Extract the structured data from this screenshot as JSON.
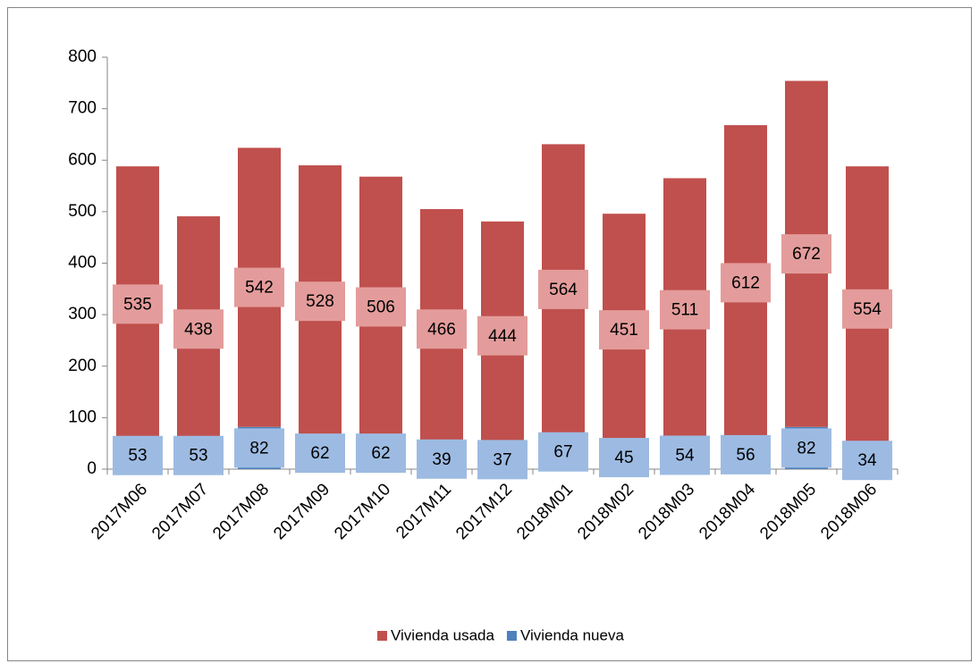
{
  "chart_data": {
    "type": "stacked_bar",
    "categories": [
      "2017M06",
      "2017M07",
      "2017M08",
      "2017M09",
      "2017M10",
      "2017M11",
      "2017M12",
      "2018M01",
      "2018M02",
      "2018M03",
      "2018M04",
      "2018M05",
      "2018M06"
    ],
    "series": [
      {
        "name": "Vivienda nueva",
        "color": "#4f81bd",
        "label_color": "#9dbbe2",
        "values": [
          53,
          53,
          82,
          62,
          62,
          39,
          37,
          67,
          45,
          54,
          56,
          82,
          34
        ]
      },
      {
        "name": "Vivienda usada",
        "color": "#c0504d",
        "label_color": "#e39c9b",
        "values": [
          535,
          438,
          542,
          528,
          506,
          466,
          444,
          564,
          451,
          511,
          612,
          672,
          554
        ]
      }
    ],
    "legend_order": [
      1,
      0
    ],
    "ylim": [
      0,
      800
    ],
    "yticks": [
      0,
      100,
      200,
      300,
      400,
      500,
      600,
      700,
      800
    ],
    "grid": false
  }
}
